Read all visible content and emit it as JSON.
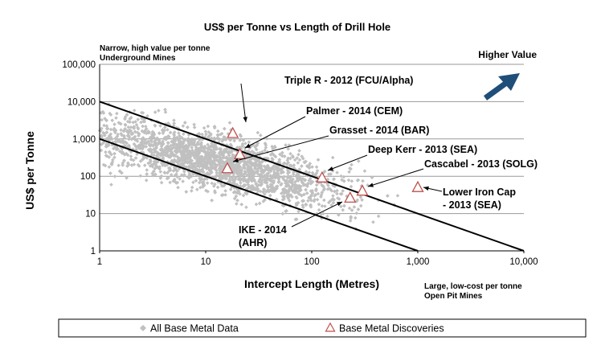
{
  "chart_data": {
    "type": "scatter",
    "title": "US$ per Tonne vs Length of Drill Hole",
    "xlabel": "Intercept Length (Metres)",
    "ylabel": "US$ per Tonne",
    "x_scale": "log",
    "y_scale": "log",
    "xlim": [
      1,
      10000
    ],
    "ylim": [
      1,
      100000
    ],
    "x_ticks": [
      "1",
      "10",
      "100",
      "1,000",
      "10,000"
    ],
    "y_ticks": [
      "1",
      "10",
      "100",
      "1,000",
      "10,000",
      "100,000"
    ],
    "grid": "horizontal",
    "legend_placement": "bottom",
    "notes": {
      "top_left": [
        "Narrow, high value per tonne",
        "Underground Mines"
      ],
      "bottom_right": [
        "Large, low-cost per tonne",
        "Open Pit Mines"
      ],
      "top_right": "Higher Value"
    },
    "reference_lines": [
      {
        "x": [
          1,
          10000
        ],
        "y": [
          10000,
          1
        ]
      },
      {
        "x": [
          1,
          1000
        ],
        "y": [
          1000,
          1
        ]
      }
    ],
    "series": [
      {
        "name": "All Base Metal Data",
        "marker": "diamond",
        "color": "#c0c0c0",
        "trend_points": [
          {
            "x": 1,
            "y": 1200
          },
          {
            "x": 10,
            "y": 280
          },
          {
            "x": 100,
            "y": 60
          },
          {
            "x": 1000,
            "y": 22
          }
        ]
      },
      {
        "name": "Base Metal Discoveries",
        "marker": "triangle",
        "color": "#c0504d",
        "points": [
          {
            "label": [
              "Triple R - 2012 (FCU/Alpha)"
            ],
            "x": 18,
            "y": 1400
          },
          {
            "label": [
              "Palmer - 2014 (CEM)"
            ],
            "x": 21,
            "y": 380
          },
          {
            "label": [
              "Grasset - 2014 (BAR)"
            ],
            "x": 16,
            "y": 160
          },
          {
            "label": [
              "Deep Kerr - 2013 (SEA)"
            ],
            "x": 125,
            "y": 90
          },
          {
            "label": [
              "Cascabel - 2013 (SOLG)"
            ],
            "x": 300,
            "y": 40
          },
          {
            "label": [
              "Lower Iron Cap",
              "- 2013 (SEA)"
            ],
            "x": 1000,
            "y": 50
          },
          {
            "label": [
              "IKE - 2014",
              "(AHR)"
            ],
            "x": 230,
            "y": 26
          }
        ]
      }
    ]
  },
  "colors": {
    "scatter": "#c0c0c0",
    "discovery": "#c0504d",
    "arrow": "#1f4e79",
    "grid": "#9a9a9a"
  }
}
